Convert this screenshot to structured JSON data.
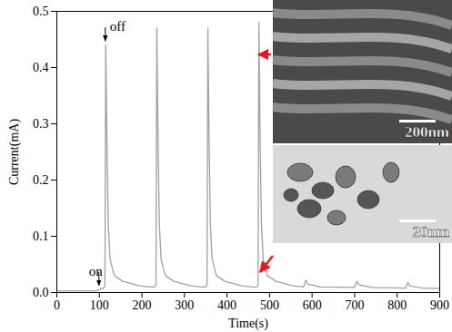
{
  "chart_data": {
    "type": "line",
    "x_label": "Time(s)",
    "y_label": "Current(mA)",
    "xlim": [
      0,
      900
    ],
    "xticks": [
      0,
      100,
      200,
      300,
      400,
      500,
      600,
      700,
      800,
      900
    ],
    "ylim": [
      0,
      0.5
    ],
    "yticks": [
      {
        "value": 0,
        "label": "0.0"
      },
      0.1,
      0.2,
      0.3,
      0.4,
      0.5
    ],
    "color": "#a0a0a0",
    "x": [
      0,
      95,
      100,
      110,
      113,
      115,
      118,
      121,
      125,
      135,
      155,
      195,
      220,
      230,
      233,
      235,
      238,
      241,
      245,
      255,
      275,
      315,
      340,
      350,
      353,
      355,
      358,
      361,
      365,
      375,
      395,
      435,
      460,
      470,
      473,
      475,
      478,
      481,
      485,
      495,
      515,
      555,
      580,
      585,
      590,
      620,
      700,
      705,
      710,
      740,
      820,
      825,
      830,
      860,
      900
    ],
    "values": [
      0.003,
      0.003,
      0.005,
      0.008,
      0.012,
      0.44,
      0.25,
      0.12,
      0.06,
      0.03,
      0.02,
      0.012,
      0.01,
      0.01,
      0.014,
      0.47,
      0.26,
      0.12,
      0.06,
      0.03,
      0.02,
      0.012,
      0.01,
      0.01,
      0.014,
      0.47,
      0.26,
      0.12,
      0.06,
      0.03,
      0.02,
      0.012,
      0.01,
      0.01,
      0.014,
      0.48,
      0.26,
      0.12,
      0.06,
      0.03,
      0.02,
      0.012,
      0.01,
      0.022,
      0.015,
      0.01,
      0.009,
      0.02,
      0.014,
      0.009,
      0.008,
      0.018,
      0.012,
      0.008,
      0.007
    ],
    "annotations": [
      {
        "text": "on",
        "x": 100,
        "y": 0.01
      },
      {
        "text": "off",
        "x": 115,
        "y": 0.445
      }
    ],
    "insets": [
      {
        "label": "200nm"
      },
      {
        "label": "20nm"
      }
    ]
  }
}
